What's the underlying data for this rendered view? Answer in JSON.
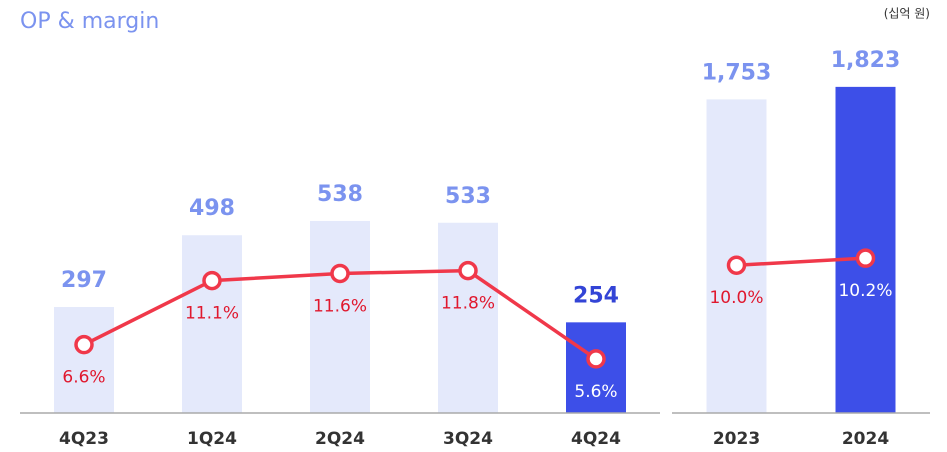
{
  "title": "OP & margin",
  "unit": "(십억 원)",
  "chart_data": [
    {
      "type": "bar",
      "categories": [
        "4Q23",
        "1Q24",
        "2Q24",
        "3Q24",
        "4Q24"
      ],
      "ylim": [
        0,
        1045
      ],
      "y2lim": [
        1.8,
        28
      ],
      "series": [
        {
          "values": [
            297,
            498,
            538,
            533,
            254
          ],
          "colors": [
            "#e4e9fb",
            "#e4e9fb",
            "#e4e9fb",
            "#e4e9fb",
            "#3d4fe8"
          ],
          "value_label_colors": [
            "#7b93ef",
            "#7b93ef",
            "#7b93ef",
            "#7b93ef",
            "#3344d6"
          ]
        },
        {
          "type": "line",
          "axis": "y2",
          "color": "#f0384a",
          "values": [
            6.6,
            11.1,
            11.6,
            11.8,
            5.6
          ],
          "value_labels": [
            "6.6%",
            "11.1%",
            "11.6%",
            "11.8%",
            "5.6%"
          ],
          "value_label_colors": [
            "#e0182e",
            "#e0182e",
            "#e0182e",
            "#e0182e",
            "#ffffff"
          ]
        }
      ]
    },
    {
      "type": "bar",
      "categories": [
        "2023",
        "2024"
      ],
      "ylim": [
        0,
        2085
      ],
      "y2lim": [
        5.8,
        16.4
      ],
      "series": [
        {
          "values": [
            1753,
            1823
          ],
          "value_labels": [
            "1,753",
            "1,823"
          ],
          "colors": [
            "#e4e9fb",
            "#3d4fe8"
          ],
          "value_label_colors": [
            "#7b93ef",
            "#7b93ef"
          ]
        },
        {
          "type": "line",
          "axis": "y2",
          "color": "#f0384a",
          "values": [
            10.0,
            10.2
          ],
          "value_labels": [
            "10.0%",
            "10.2%"
          ],
          "value_label_colors": [
            "#e0182e",
            "#ffffff"
          ]
        }
      ]
    }
  ]
}
